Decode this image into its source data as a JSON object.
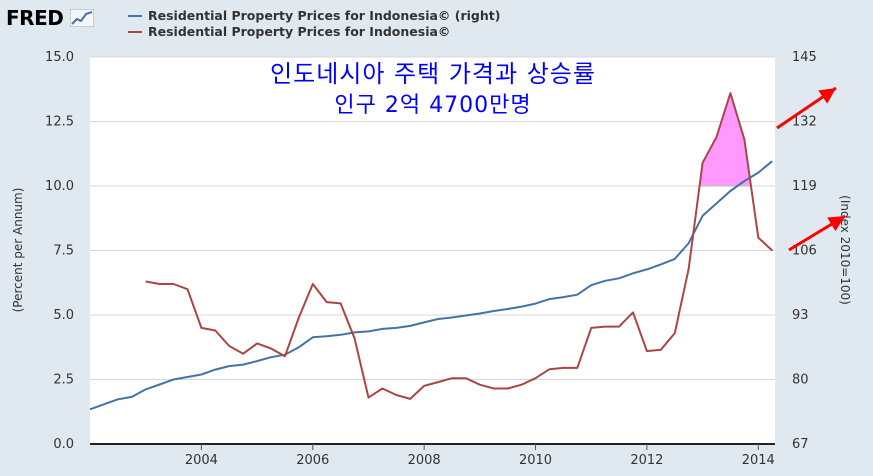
{
  "header": {
    "logo_text": "FRED",
    "logo_icon": "chart-line-icon"
  },
  "legend": [
    {
      "label": "Residential Property Prices for Indonesia© (right)",
      "color": "#4572a7"
    },
    {
      "label": "Residential Property Prices for Indonesia©",
      "color": "#aa4643"
    }
  ],
  "annotation": {
    "line1": "인도네시아 주택 가격과 상승률",
    "line2": "인구 2억 4700만명",
    "text_color": "#0000ff",
    "arrow_color": "#ff0000",
    "highlight_color": "#ff99ff"
  },
  "chart_data": {
    "type": "line",
    "x_ticks": [
      "2004",
      "2006",
      "2008",
      "2010",
      "2012",
      "2014"
    ],
    "left_axis": {
      "label": "(Percent per Annum)",
      "ticks": [
        "0.0",
        "2.5",
        "5.0",
        "7.5",
        "10.0",
        "12.5",
        "15.0"
      ],
      "range": [
        0,
        15
      ]
    },
    "right_axis": {
      "label": "(Index 2010=100)",
      "ticks": [
        "67",
        "80",
        "93",
        "106",
        "119",
        "132",
        "145"
      ],
      "range": [
        67,
        145
      ]
    },
    "xlim": [
      2002.0,
      2014.3
    ],
    "series": [
      {
        "name": "Residential Property Prices for Indonesia© (right)",
        "axis": "right",
        "color": "#4572a7",
        "x": [
          2002.0,
          2002.25,
          2002.5,
          2002.75,
          2003.0,
          2003.25,
          2003.5,
          2003.75,
          2004.0,
          2004.25,
          2004.5,
          2004.75,
          2005.0,
          2005.25,
          2005.5,
          2005.75,
          2006.0,
          2006.25,
          2006.5,
          2006.75,
          2007.0,
          2007.25,
          2007.5,
          2007.75,
          2008.0,
          2008.25,
          2008.5,
          2008.75,
          2009.0,
          2009.25,
          2009.5,
          2009.75,
          2010.0,
          2010.25,
          2010.5,
          2010.75,
          2011.0,
          2011.25,
          2011.5,
          2011.75,
          2012.0,
          2012.25,
          2012.5,
          2012.75,
          2013.0,
          2013.25,
          2013.5,
          2013.75,
          2014.0,
          2014.25
        ],
        "values": [
          74,
          75,
          76,
          76.5,
          78,
          79,
          80,
          80.5,
          81,
          82,
          82.7,
          83,
          83.7,
          84.5,
          85,
          86.5,
          88.5,
          88.7,
          89,
          89.5,
          89.7,
          90.2,
          90.4,
          90.8,
          91.5,
          92.2,
          92.5,
          92.9,
          93.3,
          93.8,
          94.2,
          94.7,
          95.3,
          96.2,
          96.6,
          97.1,
          99,
          99.9,
          100.4,
          101.4,
          102.2,
          103.2,
          104.3,
          107.5,
          113,
          115.5,
          118,
          120,
          121.7,
          124
        ]
      },
      {
        "name": "Residential Property Prices for Indonesia©",
        "axis": "left",
        "color": "#aa4643",
        "x": [
          2003.0,
          2003.25,
          2003.5,
          2003.75,
          2004.0,
          2004.25,
          2004.5,
          2004.75,
          2005.0,
          2005.25,
          2005.5,
          2005.75,
          2006.0,
          2006.25,
          2006.5,
          2006.75,
          2007.0,
          2007.25,
          2007.5,
          2007.75,
          2008.0,
          2008.25,
          2008.5,
          2008.75,
          2009.0,
          2009.25,
          2009.5,
          2009.75,
          2010.0,
          2010.25,
          2010.5,
          2010.75,
          2011.0,
          2011.25,
          2011.5,
          2011.75,
          2012.0,
          2012.25,
          2012.5,
          2012.75,
          2013.0,
          2013.25,
          2013.5,
          2013.75,
          2014.0,
          2014.25
        ],
        "values": [
          6.3,
          6.2,
          6.2,
          6.0,
          4.5,
          4.4,
          3.8,
          3.5,
          3.9,
          3.7,
          3.4,
          4.9,
          6.2,
          5.5,
          5.45,
          4.1,
          1.8,
          2.15,
          1.9,
          1.75,
          2.25,
          2.4,
          2.55,
          2.55,
          2.3,
          2.15,
          2.15,
          2.3,
          2.55,
          2.9,
          2.95,
          2.95,
          4.5,
          4.55,
          4.55,
          5.1,
          3.6,
          3.65,
          4.3,
          6.8,
          10.9,
          11.9,
          13.6,
          11.8,
          8.0,
          7.5
        ]
      }
    ]
  }
}
